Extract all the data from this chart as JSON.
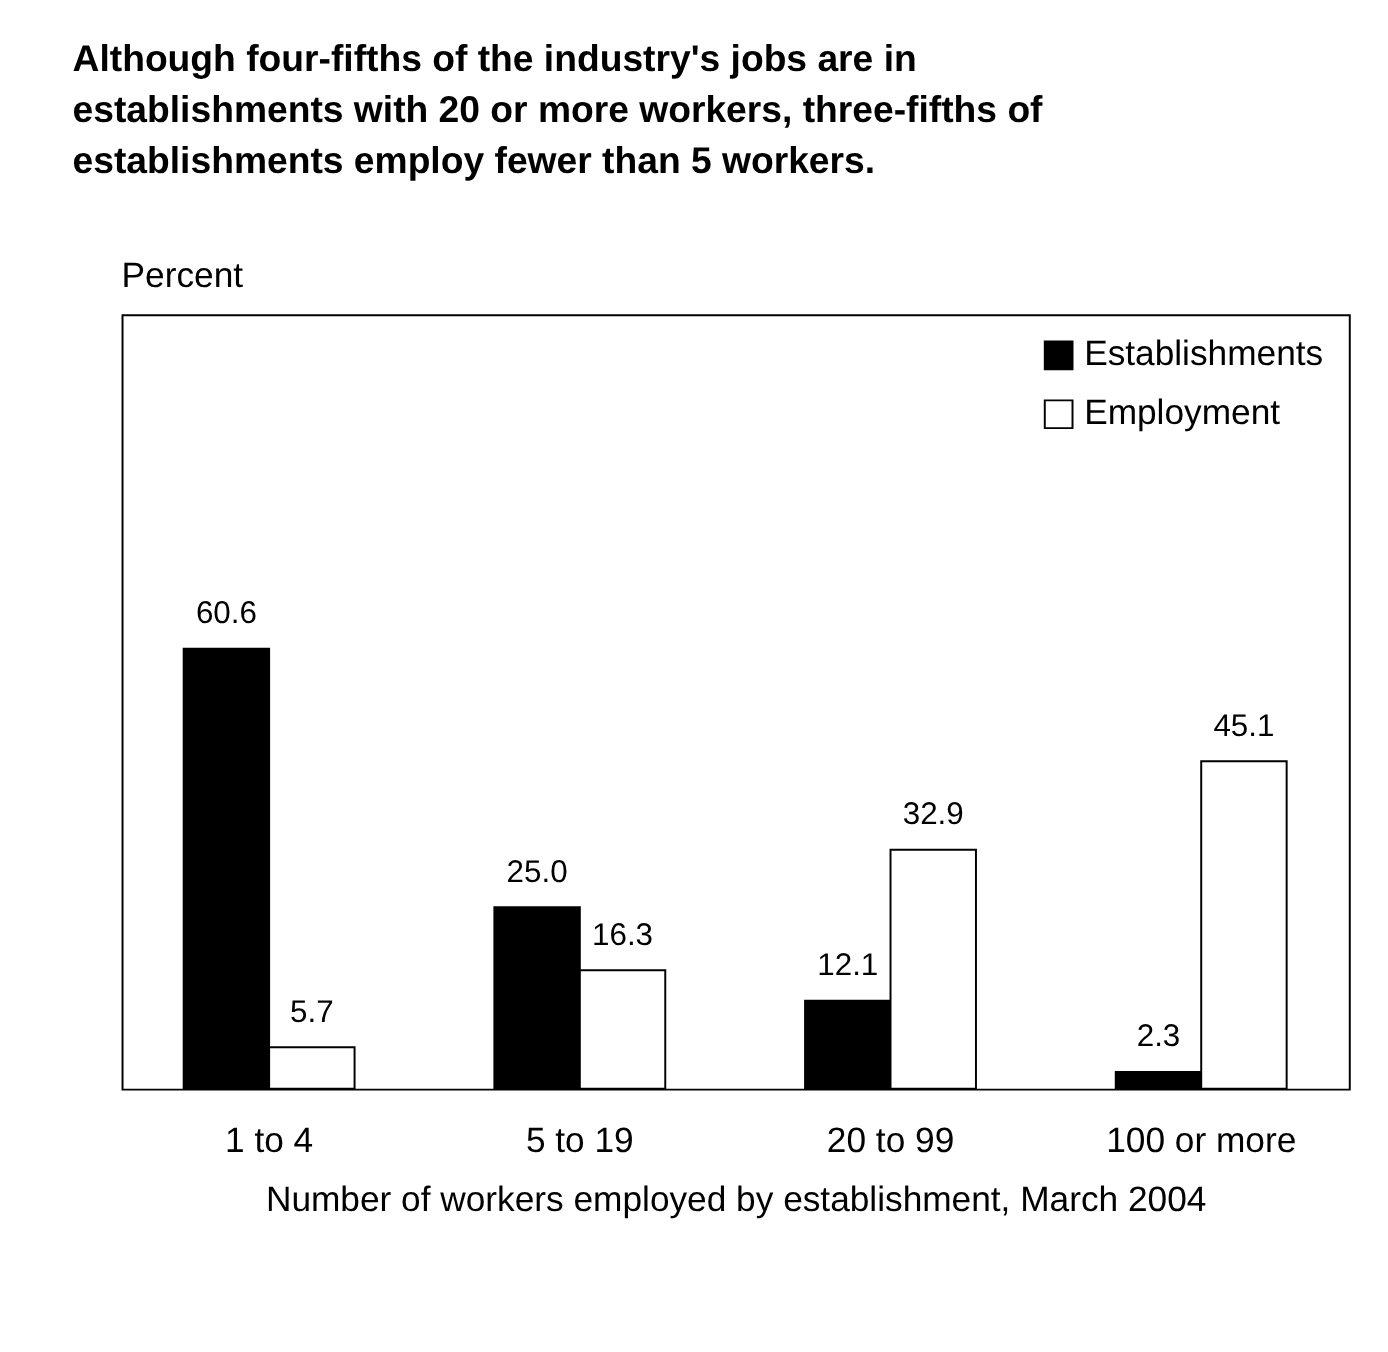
{
  "chart_data": {
    "type": "bar",
    "title": "Although four-fifths of the industry's jobs are in establishments with 20 or more workers, three-fifths of establishments employ fewer than 5 workers.",
    "annotations": [
      "Percent"
    ],
    "xlabel": "Number of workers employed by establishment, March 2004",
    "categories": [
      "1 to 4",
      "5 to 19",
      "20 to 99",
      "100 or more"
    ],
    "series": [
      {
        "name": "Establishments",
        "color": "#000000",
        "values": [
          60.6,
          25.0,
          12.1,
          2.3
        ],
        "value_labels": [
          "60.6",
          "25.0",
          "12.1",
          "2.3"
        ]
      },
      {
        "name": "Employment",
        "color": "#ffffff",
        "values": [
          5.7,
          16.3,
          32.9,
          45.1
        ],
        "value_labels": [
          "5.7",
          "16.3",
          "32.9",
          "45.1"
        ]
      }
    ],
    "legend": "top right",
    "grid": false
  }
}
